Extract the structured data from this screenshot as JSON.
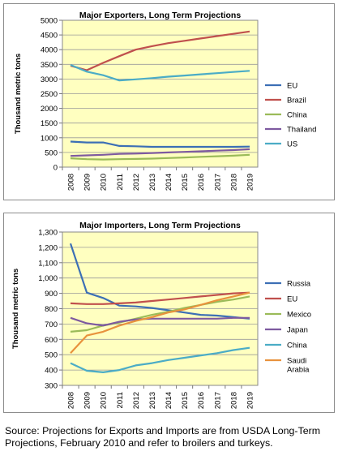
{
  "chart_data": [
    {
      "type": "line",
      "title": "Major Exporters, Long Term Projections",
      "ylabel": "Thousand metric tons",
      "xlabel": "",
      "categories": [
        "2008",
        "2009",
        "2010",
        "2011",
        "2012",
        "2013",
        "2014",
        "2015",
        "2016",
        "2017",
        "2018",
        "2019"
      ],
      "ylim": [
        0,
        5000
      ],
      "yticks": [
        "0",
        "500",
        "1000",
        "1500",
        "2000",
        "2500",
        "3000",
        "3500",
        "4000",
        "4500",
        "5000"
      ],
      "grid": true,
      "legend": "right",
      "series": [
        {
          "name": "EU",
          "color": "#3c6fb5",
          "values": [
            870,
            840,
            840,
            720,
            710,
            690,
            690,
            690,
            690,
            690,
            690,
            700
          ]
        },
        {
          "name": "Brazil",
          "color": "#c0504d",
          "values": [
            3450,
            3300,
            3550,
            3780,
            4000,
            4120,
            4220,
            4300,
            4380,
            4460,
            4540,
            4620
          ]
        },
        {
          "name": "China",
          "color": "#9bbb59",
          "values": [
            300,
            270,
            260,
            270,
            280,
            290,
            310,
            330,
            350,
            370,
            390,
            420
          ]
        },
        {
          "name": "Thailand",
          "color": "#7e5aa0",
          "values": [
            380,
            400,
            420,
            450,
            460,
            480,
            500,
            520,
            540,
            560,
            580,
            610
          ]
        },
        {
          "name": "US",
          "color": "#4bacc6",
          "values": [
            3480,
            3250,
            3130,
            2950,
            2990,
            3030,
            3080,
            3120,
            3160,
            3200,
            3240,
            3280
          ]
        }
      ]
    },
    {
      "type": "line",
      "title": "Major Importers, Long Term Projections",
      "ylabel": "Thousand metric tons",
      "xlabel": "",
      "categories": [
        "2008",
        "2009",
        "2010",
        "2011",
        "2012",
        "2013",
        "2014",
        "2015",
        "2016",
        "2017",
        "2018",
        "2019"
      ],
      "ylim": [
        300,
        1300
      ],
      "yticks": [
        "300",
        "400",
        "500",
        "600",
        "700",
        "800",
        "900",
        "1,000",
        "1,100",
        "1,200",
        "1,300"
      ],
      "grid": true,
      "legend": "right",
      "series": [
        {
          "name": "Russia",
          "color": "#3c6fb5",
          "values": [
            1225,
            905,
            870,
            820,
            815,
            805,
            790,
            775,
            760,
            755,
            745,
            735
          ]
        },
        {
          "name": "EU",
          "color": "#c0504d",
          "values": [
            835,
            830,
            830,
            835,
            840,
            850,
            860,
            870,
            880,
            890,
            900,
            905
          ]
        },
        {
          "name": "Mexico",
          "color": "#9bbb59",
          "values": [
            650,
            660,
            690,
            710,
            735,
            760,
            780,
            805,
            825,
            845,
            860,
            880
          ]
        },
        {
          "name": "Japan",
          "color": "#7e5aa0",
          "values": [
            740,
            705,
            690,
            715,
            730,
            735,
            735,
            735,
            735,
            735,
            740,
            740
          ]
        },
        {
          "name": "China",
          "color": "#4bacc6",
          "values": [
            445,
            395,
            385,
            400,
            430,
            445,
            465,
            480,
            495,
            510,
            530,
            545
          ]
        },
        {
          "name": "Saudi Arabia",
          "color": "#e8923d",
          "values": [
            510,
            625,
            650,
            690,
            720,
            745,
            775,
            795,
            825,
            855,
            880,
            905
          ]
        }
      ]
    }
  ],
  "footer": {
    "source": "Source: Projections for Exports and Imports are from USDA Long-Term Projections, February 2010 and refer to broilers and turkeys."
  }
}
